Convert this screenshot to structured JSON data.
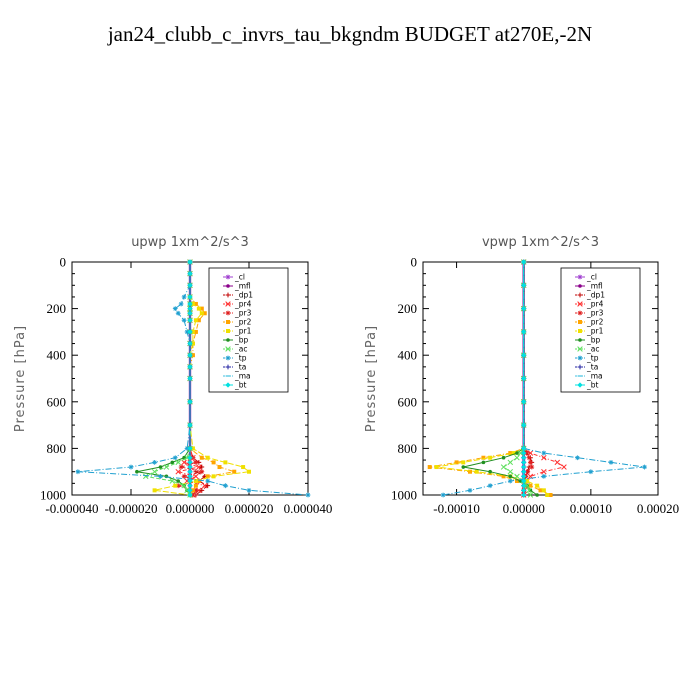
{
  "page": {
    "title": "jan24_clubb_c_invrs_tau_bkgndm  BUDGET at270E,-2N"
  },
  "chart_data": [
    {
      "type": "line",
      "title": "upwp   1xm^2/s^3",
      "ylabel": "Pressure [hPa]",
      "ylim": [
        1000,
        0
      ],
      "xlim": [
        -4e-05,
        4e-05
      ],
      "xticks": [
        -4e-05,
        -2e-05,
        0.0,
        2e-05,
        4e-05
      ],
      "xtick_labels": [
        "-0.000040",
        "-0.000020",
        "0.000000",
        "0.000020",
        "0.000040"
      ],
      "yticks": [
        0,
        200,
        400,
        600,
        800,
        1000
      ],
      "ytick_labels": [
        "0",
        "200",
        "400",
        "600",
        "800",
        "1000"
      ],
      "legend_position": "top-right",
      "y": [
        0,
        50,
        100,
        150,
        180,
        200,
        220,
        250,
        300,
        350,
        400,
        450,
        500,
        600,
        700,
        800,
        840,
        860,
        880,
        900,
        920,
        940,
        960,
        980,
        1000
      ],
      "series": [
        {
          "name": "_cl",
          "color": "#a040d0",
          "values": [
            0,
            0,
            0,
            0,
            0,
            0,
            0,
            0,
            0,
            0,
            0,
            0,
            0,
            0,
            0,
            0,
            0,
            0,
            0,
            0,
            0,
            0,
            0,
            0,
            0
          ]
        },
        {
          "name": "_mfl",
          "color": "#8b008b",
          "values": [
            0,
            0,
            0,
            0,
            0,
            0,
            0,
            0,
            0,
            0,
            0,
            0,
            0,
            0,
            0,
            0,
            0,
            0,
            0,
            0,
            0,
            0,
            0,
            0,
            0
          ]
        },
        {
          "name": "_dp1",
          "color": "#c00000",
          "values": [
            0,
            0,
            0,
            0,
            0,
            0,
            0,
            0,
            0,
            0,
            0,
            0,
            0,
            0,
            0,
            0,
            1e-06,
            3e-06,
            4e-06,
            2e-06,
            5e-06,
            3e-06,
            6e-06,
            4e-06,
            2e-06
          ]
        },
        {
          "name": "_pr4",
          "color": "#ff3030",
          "values": [
            0,
            0,
            0,
            0,
            0,
            0,
            0,
            0,
            0,
            0,
            0,
            0,
            0,
            0,
            0,
            0,
            1e-06,
            -2e-06,
            3e-06,
            -4e-06,
            2e-06,
            -1e-06,
            5e-06,
            3e-06,
            1e-06
          ]
        },
        {
          "name": "_pr3",
          "color": "#e02020",
          "values": [
            0,
            0,
            0,
            0,
            0,
            0,
            0,
            0,
            0,
            0,
            0,
            0,
            0,
            0,
            0,
            0,
            0,
            2e-06,
            -3e-06,
            4e-06,
            -2e-06,
            3e-06,
            -4e-06,
            2e-06,
            1e-06
          ]
        },
        {
          "name": "_pr2",
          "color": "#ffa500",
          "values": [
            0,
            0,
            0,
            0,
            2e-06,
            4e-06,
            5e-06,
            3e-06,
            2e-06,
            1e-06,
            1e-06,
            0,
            0,
            0,
            0,
            0,
            4e-06,
            8e-06,
            1e-05,
            1.5e-05,
            6e-06,
            3e-06,
            2e-06,
            1e-06,
            0
          ]
        },
        {
          "name": "_pr1",
          "color": "#f0e000",
          "values": [
            0,
            0,
            0,
            0,
            1e-06,
            3e-06,
            4e-06,
            2e-06,
            1e-06,
            1e-06,
            0,
            0,
            0,
            0,
            0,
            1e-06,
            6e-06,
            1.2e-05,
            1.8e-05,
            2e-05,
            8e-06,
            2e-06,
            -5e-06,
            -1.2e-05,
            0
          ]
        },
        {
          "name": "_bp",
          "color": "#209020",
          "values": [
            0,
            0,
            0,
            0,
            0,
            0,
            0,
            0,
            0,
            0,
            0,
            0,
            0,
            0,
            0,
            0,
            -2e-06,
            -6e-06,
            -1e-05,
            -1.8e-05,
            -8e-06,
            -4e-06,
            -2e-06,
            -1e-06,
            0
          ]
        },
        {
          "name": "_ac",
          "color": "#60e060",
          "values": [
            0,
            0,
            0,
            0,
            0,
            0,
            0,
            0,
            0,
            0,
            0,
            0,
            0,
            0,
            0,
            0,
            -1e-06,
            -4e-06,
            -8e-06,
            -1.2e-05,
            -1.5e-05,
            -6e-06,
            -2e-06,
            -1e-06,
            0
          ]
        },
        {
          "name": "_tp",
          "color": "#20a0d0",
          "values": [
            0,
            0,
            0,
            -2e-06,
            -3e-06,
            -5e-06,
            -4e-06,
            -2e-06,
            -1e-06,
            0,
            0,
            0,
            0,
            0,
            0,
            -1e-06,
            -5e-06,
            -1.2e-05,
            -2e-05,
            -3.8e-05,
            -1e-05,
            6e-06,
            1.2e-05,
            2e-05,
            4e-05
          ]
        },
        {
          "name": "_ta",
          "color": "#2020a0",
          "values": [
            0,
            0,
            0,
            0,
            0,
            0,
            0,
            0,
            0,
            0,
            0,
            0,
            0,
            0,
            0,
            0,
            0,
            0,
            0,
            0,
            0,
            0,
            0,
            0,
            0
          ]
        },
        {
          "name": "_ma",
          "color": "#40c0e0",
          "values": [
            0,
            0,
            0,
            0,
            0,
            0,
            0,
            0,
            0,
            0,
            0,
            0,
            0,
            0,
            0,
            0,
            0,
            0,
            0,
            0,
            0,
            0,
            0,
            0,
            0
          ]
        },
        {
          "name": "_bt",
          "color": "#00e0e0",
          "values": [
            0,
            0,
            0,
            0,
            0,
            0,
            0,
            0,
            0,
            0,
            0,
            0,
            0,
            0,
            0,
            0,
            0,
            0,
            0,
            0,
            0,
            0,
            0,
            0,
            0
          ]
        }
      ]
    },
    {
      "type": "line",
      "title": "vpwp   1xm^2/s^3",
      "ylabel": "Pressure [hPa]",
      "ylim": [
        1000,
        0
      ],
      "xlim": [
        -0.00015,
        0.0002
      ],
      "xticks": [
        -0.0001,
        0.0,
        0.0001,
        0.0002
      ],
      "xtick_labels": [
        "-0.00010",
        "0.00000",
        "0.00010",
        "0.00020"
      ],
      "yticks": [
        0,
        200,
        400,
        600,
        800,
        1000
      ],
      "ytick_labels": [
        "0",
        "200",
        "400",
        "600",
        "800",
        "1000"
      ],
      "legend_position": "top-right",
      "y": [
        0,
        100,
        200,
        300,
        400,
        500,
        600,
        700,
        800,
        820,
        840,
        860,
        880,
        900,
        920,
        940,
        960,
        980,
        1000
      ],
      "series": [
        {
          "name": "_cl",
          "color": "#a040d0",
          "values": [
            0,
            0,
            0,
            0,
            0,
            0,
            0,
            0,
            0,
            0,
            0,
            0,
            0,
            0,
            0,
            0,
            0,
            0,
            0
          ]
        },
        {
          "name": "_mfl",
          "color": "#8b008b",
          "values": [
            0,
            0,
            0,
            0,
            0,
            0,
            0,
            0,
            0,
            0,
            0,
            0,
            0,
            0,
            0,
            0,
            0,
            0,
            0
          ]
        },
        {
          "name": "_dp1",
          "color": "#c00000",
          "values": [
            0,
            0,
            0,
            0,
            0,
            0,
            0,
            0,
            0,
            5e-06,
            1e-05,
            1.2e-05,
            8e-06,
            5e-06,
            3e-06,
            2e-06,
            1e-06,
            0,
            0
          ]
        },
        {
          "name": "_pr4",
          "color": "#ff3030",
          "values": [
            0,
            0,
            0,
            0,
            0,
            0,
            0,
            0,
            0,
            1e-05,
            3e-05,
            5e-05,
            6e-05,
            3e-05,
            1e-05,
            5e-06,
            2e-06,
            1e-06,
            0
          ]
        },
        {
          "name": "_pr3",
          "color": "#e02020",
          "values": [
            0,
            0,
            0,
            0,
            0,
            0,
            0,
            0,
            0,
            4e-06,
            8e-06,
            1e-05,
            1.2e-05,
            6e-06,
            3e-06,
            2e-06,
            1e-06,
            0,
            0
          ]
        },
        {
          "name": "_pr2",
          "color": "#ffa500",
          "values": [
            0,
            0,
            0,
            0,
            0,
            0,
            0,
            0,
            0,
            -2e-05,
            -6e-05,
            -0.0001,
            -0.00014,
            -8e-05,
            -3e-05,
            -1e-05,
            1e-05,
            2.5e-05,
            4e-05
          ]
        },
        {
          "name": "_pr1",
          "color": "#f0e000",
          "values": [
            0,
            0,
            0,
            0,
            0,
            0,
            0,
            0,
            0,
            -1.5e-05,
            -5e-05,
            -9e-05,
            -0.00013,
            -7e-05,
            -2e-05,
            5e-06,
            2e-05,
            3e-05,
            3.5e-05
          ]
        },
        {
          "name": "_bp",
          "color": "#209020",
          "values": [
            0,
            0,
            0,
            0,
            0,
            0,
            0,
            0,
            0,
            -1e-05,
            -3e-05,
            -6e-05,
            -9e-05,
            -5e-05,
            -2e-05,
            -5e-06,
            5e-06,
            1e-05,
            2e-05
          ]
        },
        {
          "name": "_ac",
          "color": "#60e060",
          "values": [
            0,
            0,
            0,
            0,
            0,
            0,
            0,
            0,
            0,
            -5e-06,
            -1e-05,
            -2e-05,
            -3e-05,
            -2e-05,
            -1e-05,
            0,
            5e-06,
            8e-06,
            1e-05
          ]
        },
        {
          "name": "_tp",
          "color": "#20a0d0",
          "values": [
            0,
            0,
            0,
            0,
            0,
            0,
            0,
            0,
            0,
            3e-05,
            8e-05,
            0.00013,
            0.00018,
            0.0001,
            3e-05,
            -2e-05,
            -5e-05,
            -8e-05,
            -0.00012
          ]
        },
        {
          "name": "_ta",
          "color": "#2020a0",
          "values": [
            0,
            0,
            0,
            0,
            0,
            0,
            0,
            0,
            0,
            0,
            0,
            0,
            0,
            0,
            0,
            0,
            0,
            0,
            0
          ]
        },
        {
          "name": "_ma",
          "color": "#40c0e0",
          "values": [
            0,
            0,
            0,
            0,
            0,
            0,
            0,
            0,
            0,
            0,
            0,
            0,
            0,
            0,
            0,
            0,
            0,
            0,
            0
          ]
        },
        {
          "name": "_bt",
          "color": "#00e0e0",
          "values": [
            0,
            0,
            0,
            0,
            0,
            0,
            0,
            0,
            0,
            0,
            0,
            0,
            0,
            0,
            0,
            0,
            0,
            0,
            0
          ]
        }
      ]
    }
  ]
}
